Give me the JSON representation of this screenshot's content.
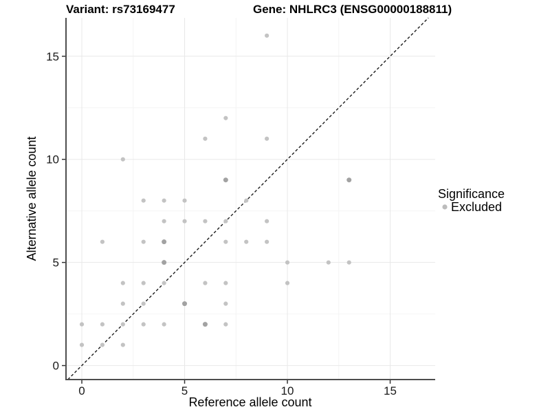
{
  "chart_data": {
    "type": "scatter",
    "titles": {
      "left": "Variant: rs73169477",
      "right": "Gene: NHLRC3 (ENSG00000188811)"
    },
    "xlabel": "Reference allele count",
    "ylabel": "Alternative allele count",
    "xticks": [
      0,
      5,
      10,
      15
    ],
    "yticks": [
      0,
      5,
      10,
      15
    ],
    "xlim": [
      -0.77,
      17.19
    ],
    "ylim": [
      -0.68,
      16.86
    ],
    "grid": {
      "x_minor": [
        2.5,
        7.5,
        12.5
      ],
      "y_minor": [
        2.5,
        7.5,
        12.5
      ]
    },
    "identity_line": {
      "slope": 1,
      "intercept": 0,
      "linetype": "dashed"
    },
    "points": [
      [
        0,
        1
      ],
      [
        0,
        2
      ],
      [
        1,
        1
      ],
      [
        1,
        2
      ],
      [
        1,
        6
      ],
      [
        2,
        1
      ],
      [
        2,
        2
      ],
      [
        2,
        3
      ],
      [
        2,
        4
      ],
      [
        2,
        10
      ],
      [
        3,
        2
      ],
      [
        3,
        3
      ],
      [
        3,
        4
      ],
      [
        3,
        6
      ],
      [
        3,
        8
      ],
      [
        4,
        2
      ],
      [
        4,
        4
      ],
      [
        4,
        5
      ],
      [
        4,
        6
      ],
      [
        4,
        7
      ],
      [
        4,
        8
      ],
      [
        5,
        3
      ],
      [
        5,
        7
      ],
      [
        5,
        8
      ],
      [
        6,
        2
      ],
      [
        6,
        4
      ],
      [
        6,
        7
      ],
      [
        6,
        11
      ],
      [
        7,
        2
      ],
      [
        7,
        3
      ],
      [
        7,
        4
      ],
      [
        7,
        6
      ],
      [
        7,
        7
      ],
      [
        7,
        9
      ],
      [
        7,
        12
      ],
      [
        8,
        6
      ],
      [
        8,
        8
      ],
      [
        9,
        6
      ],
      [
        9,
        7
      ],
      [
        9,
        11
      ],
      [
        9,
        16
      ],
      [
        10,
        4
      ],
      [
        10,
        5
      ],
      [
        12,
        5
      ],
      [
        13,
        5
      ],
      [
        13,
        9
      ]
    ],
    "overplotted": [
      [
        4,
        5
      ],
      [
        4,
        6
      ],
      [
        5,
        3
      ],
      [
        6,
        2
      ],
      [
        7,
        9
      ],
      [
        13,
        9
      ]
    ],
    "legend": {
      "title": "Significance",
      "position": "right",
      "items": [
        {
          "label": "Excluded",
          "color": "#bcbcbc"
        }
      ]
    }
  },
  "colors": {
    "point": "#c3c3c3",
    "point_dark": "#a2a2a2",
    "grid_major": "#e8e8e8",
    "grid_minor": "#f4f4f4",
    "axis_line": "#4d4d4d",
    "tick": "#333333",
    "identity_line": "#1a1a1a"
  }
}
